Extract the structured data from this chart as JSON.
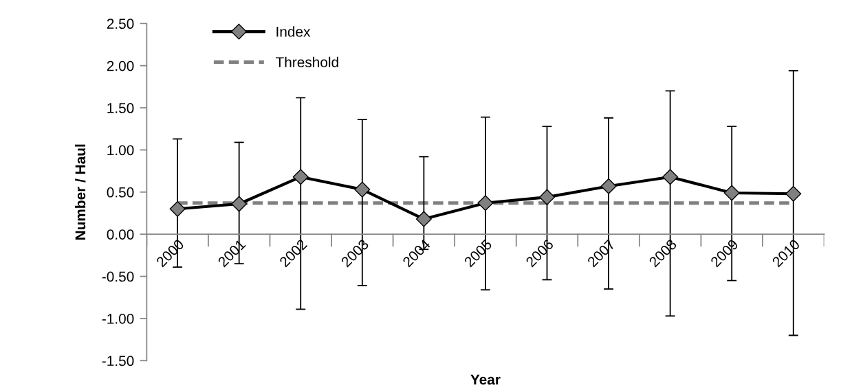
{
  "chart_data": {
    "type": "line",
    "xlabel": "Year",
    "ylabel": "Number / Haul",
    "categories": [
      "2000",
      "2001",
      "2002",
      "2003",
      "2004",
      "2005",
      "2006",
      "2007",
      "2008",
      "2009",
      "2010"
    ],
    "series": [
      {
        "name": "Index",
        "color": "#000000",
        "marker": "diamond",
        "line_style": "solid",
        "values": [
          0.3,
          0.36,
          0.68,
          0.53,
          0.18,
          0.37,
          0.44,
          0.57,
          0.68,
          0.49,
          0.48
        ],
        "errors": [
          [
            -0.39,
            1.13
          ],
          [
            -0.35,
            1.09
          ],
          [
            -0.89,
            1.62
          ],
          [
            -0.61,
            1.36
          ],
          [
            -0.18,
            0.92
          ],
          [
            -0.66,
            1.39
          ],
          [
            -0.54,
            1.28
          ],
          [
            -0.65,
            1.38
          ],
          [
            -0.97,
            1.7
          ],
          [
            -0.55,
            1.28
          ],
          [
            -1.2,
            1.94
          ]
        ]
      },
      {
        "name": "Threshold",
        "color": "#808080",
        "marker": "none",
        "line_style": "dashed",
        "values": [
          0.37,
          0.37,
          0.37,
          0.37,
          0.37,
          0.37,
          0.37,
          0.37,
          0.37,
          0.37,
          0.37
        ]
      }
    ],
    "ylim": [
      -1.5,
      2.5
    ],
    "yticks": [
      {
        "value": -1.5,
        "label": "-1.50"
      },
      {
        "value": -1.0,
        "label": "-1.00"
      },
      {
        "value": -0.5,
        "label": "-0.50"
      },
      {
        "value": 0,
        "label": "0.00"
      },
      {
        "value": 0.5,
        "label": "0.50"
      },
      {
        "value": 1.0,
        "label": "1.00"
      },
      {
        "value": 1.5,
        "label": "1.50"
      },
      {
        "value": 2.0,
        "label": "2.00"
      },
      {
        "value": 2.5,
        "label": "2.50"
      }
    ],
    "grid": false,
    "legend": "top left"
  }
}
